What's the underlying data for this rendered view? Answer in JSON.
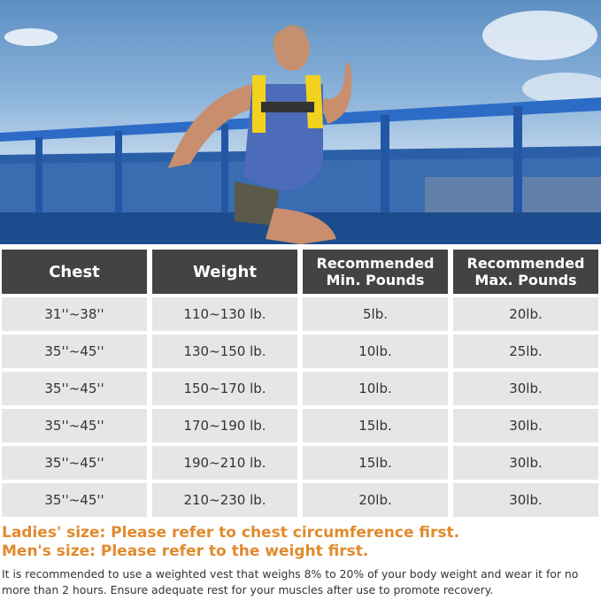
{
  "table": {
    "headers": [
      "Chest",
      "Weight",
      "Recommended Min. Pounds",
      "Recommended Max. Pounds"
    ],
    "header_lines": [
      [
        "Chest"
      ],
      [
        "Weight"
      ],
      [
        "Recommended",
        "Min. Pounds"
      ],
      [
        "Recommended",
        "Max. Pounds"
      ]
    ],
    "rows": [
      [
        "31''~38''",
        "110~130 lb.",
        "5lb.",
        "20lb."
      ],
      [
        "35''~45''",
        "130~150 lb.",
        "10lb.",
        "25lb."
      ],
      [
        "35''~45''",
        "150~170 lb.",
        "10lb.",
        "30lb."
      ],
      [
        "35''~45''",
        "170~190 lb.",
        "15lb.",
        "30lb."
      ],
      [
        "35''~45''",
        "190~210 lb.",
        "15lb.",
        "30lb."
      ],
      [
        "35''~45''",
        "210~230 lb.",
        "20lb.",
        "30lb."
      ]
    ]
  },
  "notes": {
    "ladies": "Ladies' size: Please refer to chest circumference first.",
    "mens": "Men's size: Please refer to the weight first.",
    "recommendation": "It is recommended to use a weighted vest that weighs 8% to 20% of your body weight and wear it for no more than 2 hours. Ensure adequate rest for your muscles after use to promote recovery."
  },
  "colors": {
    "header_bg": "#434343",
    "cell_bg": "#e6e6e6",
    "accent": "#e08a2e",
    "vest": "#f2d21e"
  }
}
